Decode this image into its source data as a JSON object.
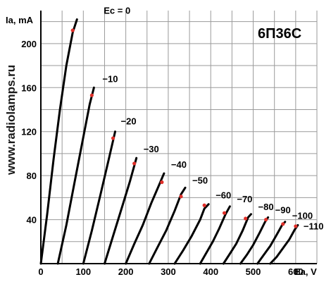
{
  "watermark": "www.radiolamps.ru",
  "model": "6П36С",
  "chart_data": {
    "type": "line",
    "xlabel": "Ea, V",
    "ylabel": "Ia, mA",
    "xlim": [
      0,
      650
    ],
    "ylim": [
      0,
      230
    ],
    "x_ticks": [
      0,
      100,
      200,
      300,
      400,
      500,
      600
    ],
    "y_ticks": [
      40,
      80,
      120,
      160,
      200
    ],
    "grid": true,
    "series": [
      {
        "name": "Ec = 0",
        "points": [
          [
            0,
            0
          ],
          [
            15,
            45
          ],
          [
            30,
            95
          ],
          [
            45,
            140
          ],
          [
            60,
            180
          ],
          [
            75,
            210
          ],
          [
            85,
            222
          ]
        ],
        "marker": [
          75,
          212
        ]
      },
      {
        "name": "−10",
        "points": [
          [
            40,
            0
          ],
          [
            60,
            35
          ],
          [
            80,
            75
          ],
          [
            100,
            115
          ],
          [
            115,
            145
          ],
          [
            125,
            160
          ]
        ],
        "marker": [
          120,
          153
        ]
      },
      {
        "name": "−20",
        "points": [
          [
            100,
            0
          ],
          [
            120,
            30
          ],
          [
            140,
            62
          ],
          [
            160,
            95
          ],
          [
            175,
            120
          ]
        ],
        "marker": [
          170,
          114
        ]
      },
      {
        "name": "−30",
        "points": [
          [
            150,
            0
          ],
          [
            170,
            25
          ],
          [
            190,
            50
          ],
          [
            210,
            75
          ],
          [
            225,
            96
          ]
        ],
        "marker": [
          220,
          91
        ]
      },
      {
        "name": "−40",
        "points": [
          [
            200,
            0
          ],
          [
            220,
            18
          ],
          [
            240,
            35
          ],
          [
            260,
            55
          ],
          [
            280,
            73
          ],
          [
            290,
            82
          ]
        ],
        "marker": [
          285,
          74
        ]
      },
      {
        "name": "−50",
        "points": [
          [
            255,
            0
          ],
          [
            275,
            15
          ],
          [
            295,
            30
          ],
          [
            315,
            48
          ],
          [
            330,
            63
          ],
          [
            340,
            69
          ]
        ],
        "marker": [
          330,
          61
        ]
      },
      {
        "name": "−60",
        "points": [
          [
            315,
            0
          ],
          [
            335,
            12
          ],
          [
            355,
            25
          ],
          [
            375,
            40
          ],
          [
            385,
            50
          ],
          [
            395,
            54
          ]
        ],
        "marker": [
          385,
          53
        ]
      },
      {
        "name": "−70",
        "points": [
          [
            375,
            0
          ],
          [
            390,
            10
          ],
          [
            405,
            20
          ],
          [
            420,
            32
          ],
          [
            435,
            45
          ],
          [
            445,
            52
          ]
        ],
        "marker": [
          432,
          46
        ]
      },
      {
        "name": "−80",
        "points": [
          [
            430,
            0
          ],
          [
            445,
            9
          ],
          [
            460,
            18
          ],
          [
            475,
            30
          ],
          [
            488,
            42
          ],
          [
            495,
            45
          ]
        ],
        "marker": [
          482,
          41
        ]
      },
      {
        "name": "−90",
        "points": [
          [
            470,
            0
          ],
          [
            485,
            8
          ],
          [
            500,
            17
          ],
          [
            515,
            28
          ],
          [
            528,
            38
          ],
          [
            535,
            42
          ]
        ],
        "marker": [
          530,
          40
        ]
      },
      {
        "name": "−100",
        "points": [
          [
            510,
            0
          ],
          [
            525,
            8
          ],
          [
            540,
            16
          ],
          [
            555,
            26
          ],
          [
            568,
            35
          ],
          [
            575,
            38
          ]
        ],
        "marker": [
          570,
          36
        ]
      },
      {
        "name": "−110",
        "points": [
          [
            540,
            0
          ],
          [
            555,
            6
          ],
          [
            570,
            14
          ],
          [
            585,
            22
          ],
          [
            598,
            31
          ],
          [
            605,
            35
          ]
        ],
        "marker": [
          600,
          34
        ]
      }
    ]
  }
}
